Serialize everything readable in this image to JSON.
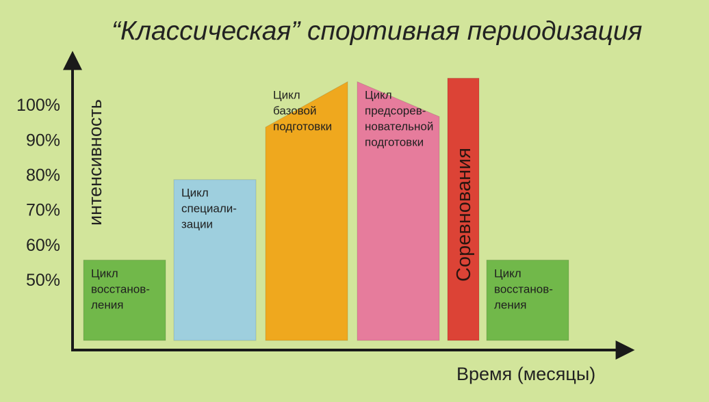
{
  "chart_data": {
    "type": "bar",
    "title": "“Классическая” спортивная периодизация",
    "ylabel": "интенсивность",
    "xlabel": "Время (месяцы)",
    "y_ticks": [
      "100%",
      "90%",
      "80%",
      "70%",
      "60%",
      "50%"
    ],
    "y_tick_values": [
      100,
      90,
      80,
      70,
      60,
      50
    ],
    "ylim": [
      32,
      107
    ],
    "grid": false,
    "legend": "none",
    "blocks": [
      {
        "label": [
          "Цикл",
          "восстанов-",
          "ления"
        ],
        "value_start": 55,
        "value_end": 55,
        "color": "#71b84a",
        "text_color": "#1f1f1f",
        "text_vertical": false
      },
      {
        "label": [
          "Цикл",
          "специали-",
          "зации"
        ],
        "value_start": 78,
        "value_end": 78,
        "color": "#9ecfde",
        "text_color": "#1f1f1f",
        "text_vertical": false
      },
      {
        "label": [
          "Цикл",
          "базовой",
          "подготовки"
        ],
        "value_start": 93,
        "value_end": 106,
        "color": "#efa81e",
        "text_color": "#1f1f1f",
        "text_vertical": false
      },
      {
        "label": [
          "Цикл",
          "предсорев-",
          "новательной",
          "подготовки"
        ],
        "value_start": 106,
        "value_end": 96,
        "color": "#e67c9c",
        "text_color": "#1f1f1f",
        "text_vertical": false
      },
      {
        "label": [
          "Соревнования"
        ],
        "value_start": 107,
        "value_end": 107,
        "color": "#dc4336",
        "text_color": "#2a1510",
        "text_vertical": true
      },
      {
        "label": [
          "Цикл",
          "восстанов-",
          "ления"
        ],
        "value_start": 55,
        "value_end": 55,
        "color": "#71b84a",
        "text_color": "#1f1f1f",
        "text_vertical": false
      }
    ]
  },
  "colors": {
    "background": "#d2e59b",
    "axis": "#1a1a1a",
    "text": "#222222"
  }
}
